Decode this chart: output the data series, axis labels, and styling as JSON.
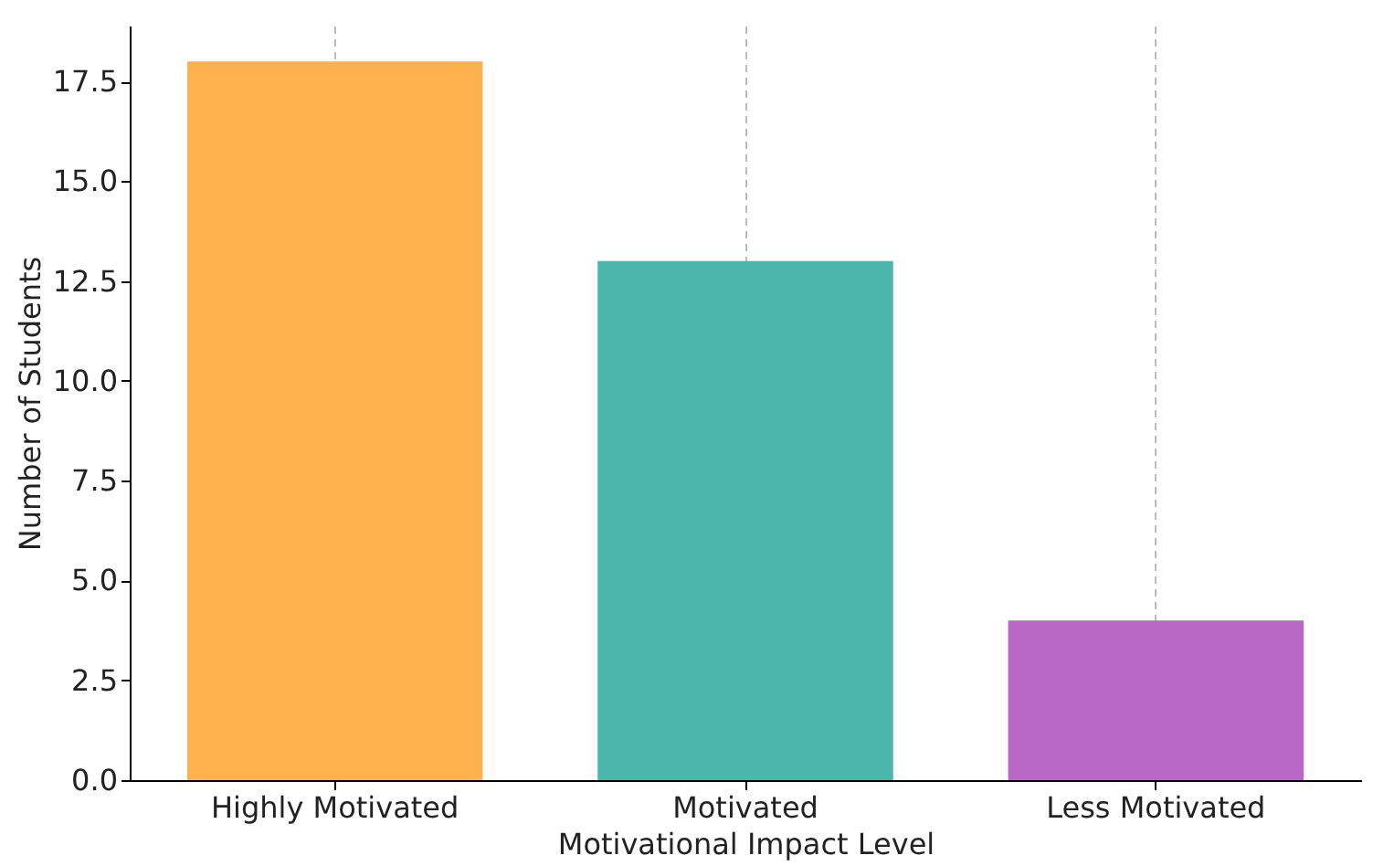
{
  "chart_data": {
    "type": "bar",
    "xlabel": "Motivational Impact Level",
    "ylabel": "Number of Students",
    "categories": [
      "Highly Motivated",
      "Motivated",
      "Less Motivated"
    ],
    "values": [
      18,
      13,
      4
    ],
    "colors": [
      "#ffb14e",
      "#4db6ac",
      "#ba68c8"
    ],
    "ylim": [
      0,
      18.9
    ],
    "yticks": [
      {
        "value": 0,
        "label": "0.0"
      },
      2.5,
      {
        "value": 5,
        "label": "5.0"
      },
      7.5,
      {
        "value": 10,
        "label": "10.0"
      },
      12.5,
      {
        "value": 15,
        "label": "15.0"
      },
      17.5
    ],
    "grid": "x"
  }
}
